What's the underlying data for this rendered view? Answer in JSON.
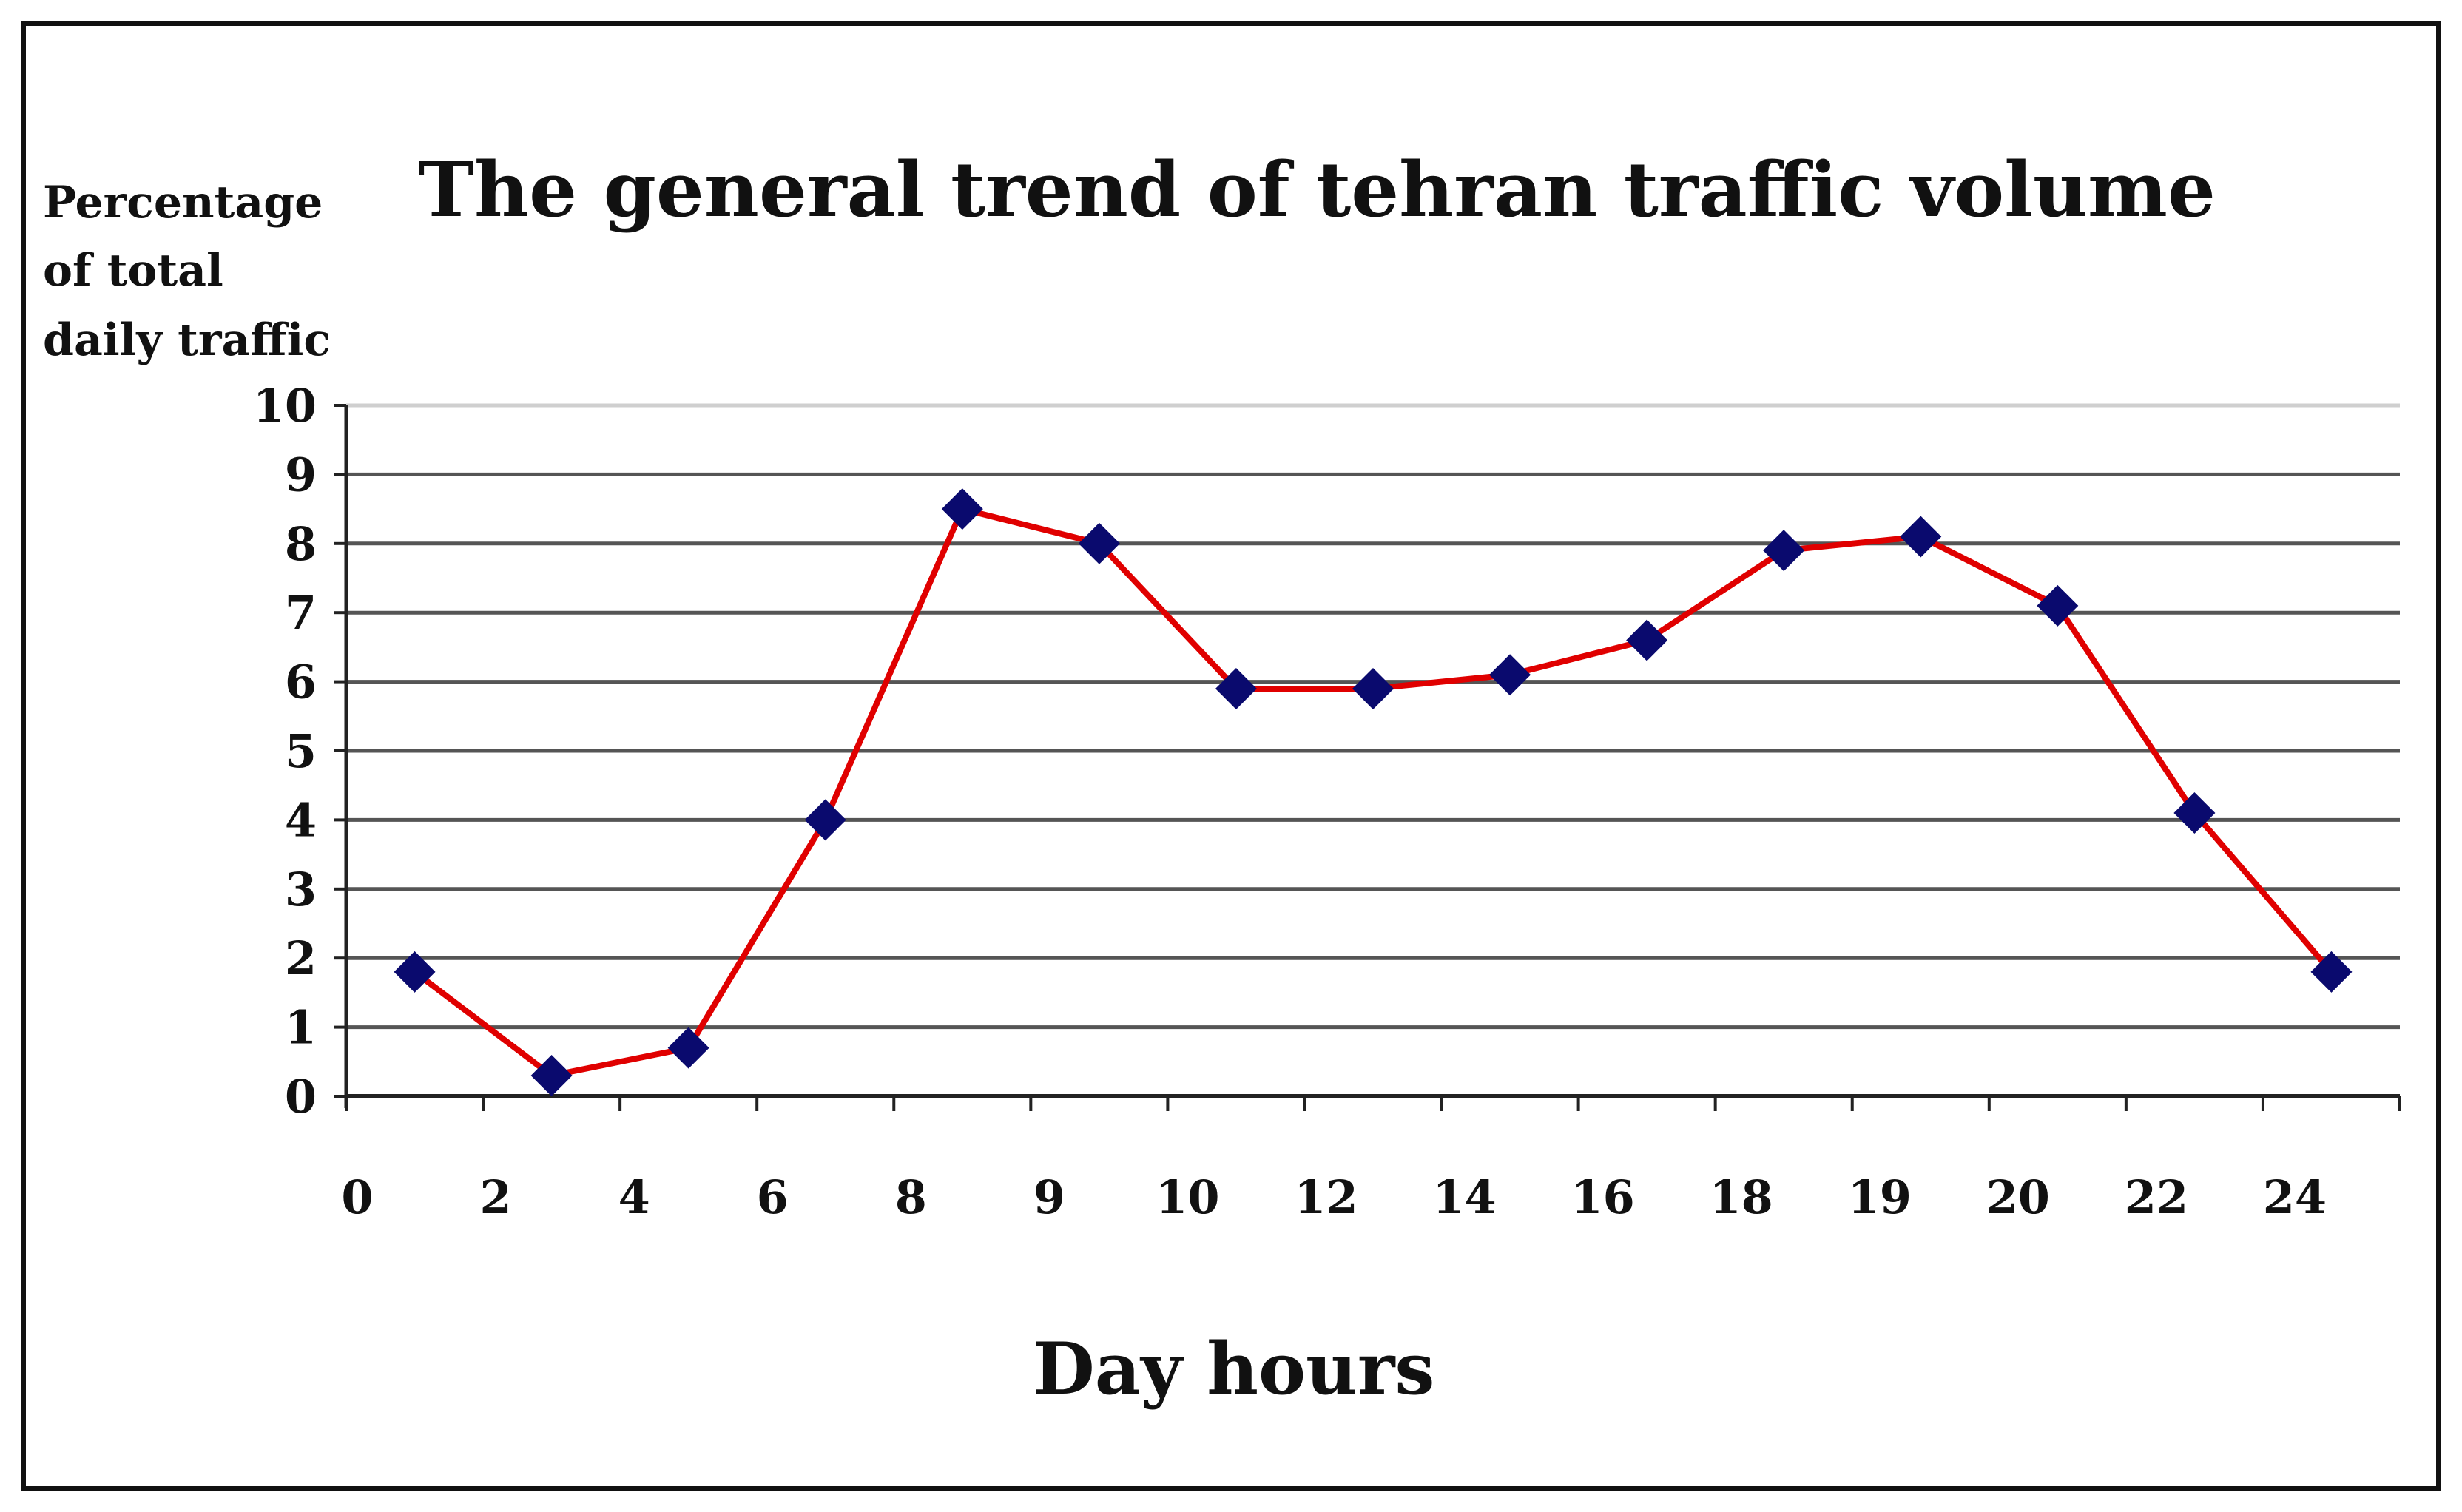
{
  "chart_data": {
    "type": "line",
    "title": "The general trend of tehran traffic volume",
    "ylabel_lines": [
      "Percentage",
      "of total",
      "daily traffic"
    ],
    "xlabel": "Day hours",
    "ylim": [
      0,
      10
    ],
    "yticks": [
      "0",
      "1",
      "2",
      "3",
      "4",
      "5",
      "6",
      "7",
      "8",
      "9",
      "10"
    ],
    "x_tick_labels": [
      "0",
      "2",
      "4",
      "6",
      "8",
      "9",
      "10",
      "12",
      "14",
      "16",
      "18",
      "19",
      "20",
      "22",
      "24"
    ],
    "grid": true,
    "series": [
      {
        "values": [
          1.8,
          0.3,
          0.7,
          4.0,
          8.5,
          8.0,
          5.9,
          5.9,
          6.1,
          6.6,
          7.9,
          8.1,
          7.1,
          4.1,
          1.8
        ]
      }
    ],
    "colors": {
      "line": "#e00000",
      "marker": "#0a0a6e",
      "grid": "#555555"
    }
  }
}
